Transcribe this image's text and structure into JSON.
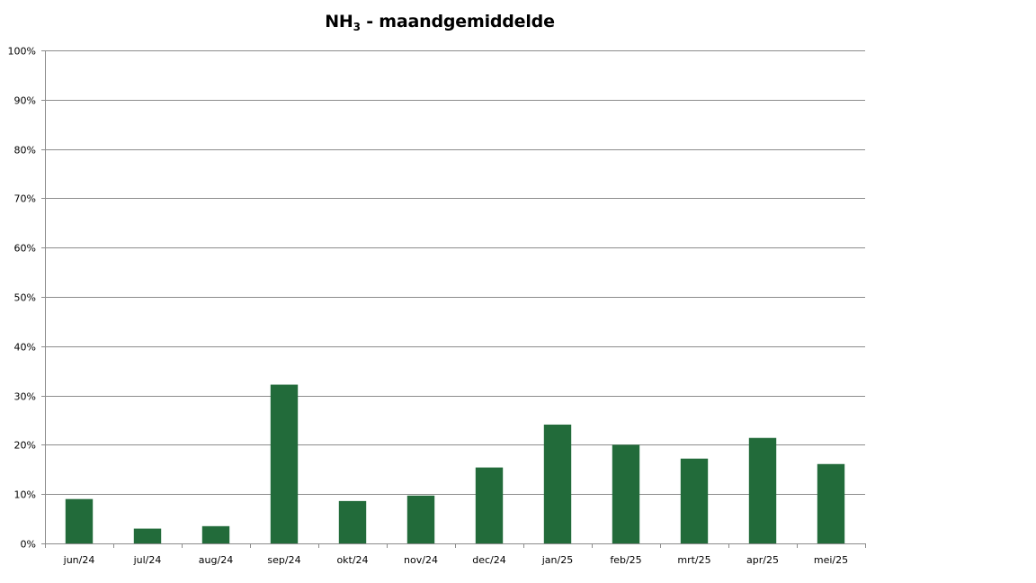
{
  "chart_data": {
    "type": "bar",
    "title": "NH",
    "title_subscript": "3",
    "title_suffix": " - maandgemiddelde",
    "xlabel": "",
    "ylabel": "",
    "categories": [
      "jun/24",
      "jul/24",
      "aug/24",
      "sep/24",
      "okt/24",
      "nov/24",
      "dec/24",
      "jan/25",
      "feb/25",
      "mrt/25",
      "apr/25",
      "mei/25"
    ],
    "series": [
      {
        "values": [
          9.0,
          3.0,
          3.5,
          32.2,
          8.6,
          9.7,
          15.4,
          24.1,
          20.0,
          17.2,
          21.4,
          16.1
        ],
        "color": "#226b3a"
      }
    ],
    "ylim": [
      0,
      100
    ],
    "yticks": [
      0,
      10,
      20,
      30,
      40,
      50,
      60,
      70,
      80,
      90,
      100
    ],
    "ytick_labels": [
      "0%",
      "10%",
      "20%",
      "30%",
      "40%",
      "50%",
      "60%",
      "70%",
      "80%",
      "90%",
      "100%"
    ],
    "y_unit": "%",
    "grid": true,
    "legend": "none",
    "colors": {
      "bar": "#226b3a",
      "grid": "#8c8c8c",
      "axis": "#8c8c8c"
    }
  }
}
